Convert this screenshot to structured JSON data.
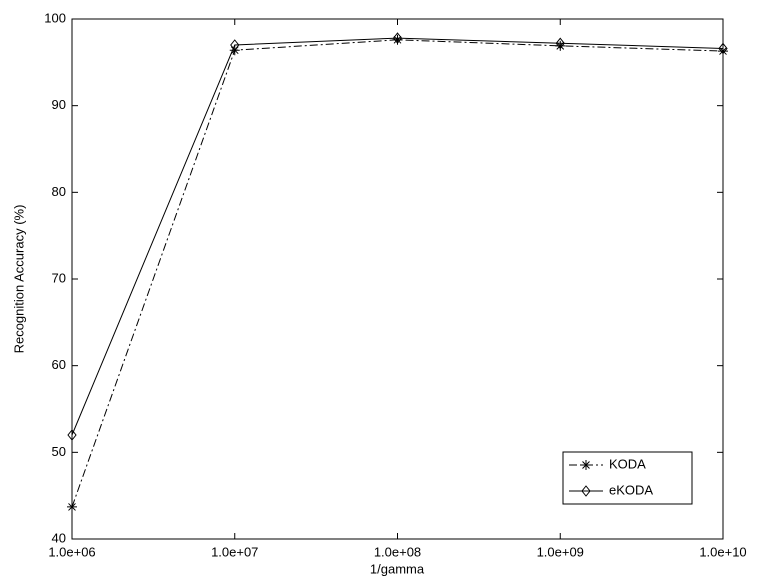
{
  "chart_data": {
    "type": "line",
    "xlabel": "1/gamma",
    "ylabel": "Recognition Accuracy (%)",
    "x": [
      1000000,
      10000000,
      100000000,
      1000000000,
      10000000000
    ],
    "xscale": "log",
    "xlim": [
      1000000,
      10000000000
    ],
    "xticks": [
      {
        "value": 1000000,
        "label": "1.0e+06"
      },
      {
        "value": 10000000,
        "label": "1.0e+07"
      },
      {
        "value": 100000000,
        "label": "1.0e+08"
      },
      {
        "value": 1000000000,
        "label": "1.0e+09"
      },
      {
        "value": 10000000000,
        "label": "1.0e+10"
      }
    ],
    "ylim": [
      40,
      100
    ],
    "yticks": [
      40,
      50,
      60,
      70,
      80,
      90,
      100
    ],
    "grid": false,
    "legend": "lower right",
    "series": [
      {
        "name": "KODA",
        "color": "#000000",
        "dash": "dashdot",
        "marker": "star",
        "values": [
          43.7,
          96.4,
          97.6,
          96.9,
          96.3
        ]
      },
      {
        "name": "eKODA",
        "color": "#000000",
        "dash": "solid",
        "marker": "diamond",
        "values": [
          52,
          97,
          97.8,
          97.2,
          96.6
        ]
      }
    ]
  }
}
